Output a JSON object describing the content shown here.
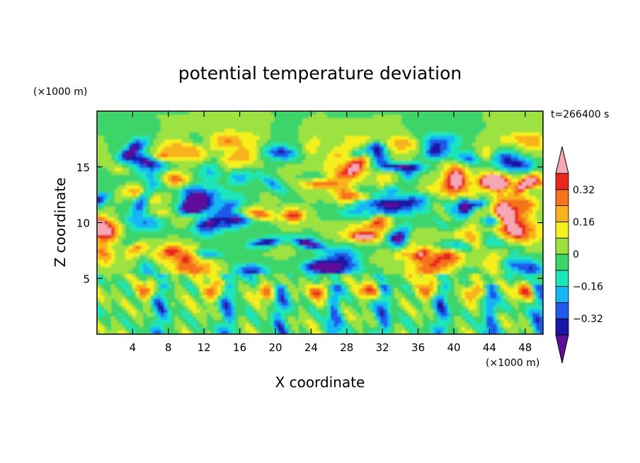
{
  "chart_data": {
    "type": "heatmap",
    "title": "potential temperature deviation",
    "xlabel": "X coordinate",
    "ylabel": "Z coordinate",
    "x_unit": "(×1000 m)",
    "y_unit": "(×1000 m)",
    "time_label": "t=266400 s",
    "xlim": [
      0,
      50
    ],
    "ylim": [
      0,
      20
    ],
    "x_ticks": [
      "4",
      "8",
      "12",
      "16",
      "20",
      "24",
      "28",
      "32",
      "36",
      "40",
      "44",
      "48"
    ],
    "y_ticks": [
      "5",
      "10",
      "15"
    ],
    "colorbar": {
      "labels": [
        "0.32",
        "0.16",
        "0",
        "−0.16",
        "−0.32"
      ],
      "levels": [
        -0.4,
        -0.32,
        -0.24,
        -0.16,
        -0.08,
        0,
        0.08,
        0.16,
        0.24,
        0.32,
        0.4
      ],
      "colors": [
        "#5e0f98",
        "#1a17a8",
        "#1f5ae8",
        "#16b6f5",
        "#1fe6b9",
        "#3cd56a",
        "#9ce23f",
        "#f5f01f",
        "#f8b21f",
        "#f5731b",
        "#e8281c",
        "#f5a8b4"
      ]
    },
    "field_description": "Convective boundary layer below ~5 km with plumes; wave-like alternating warm/cold eddies between 5 and 18 km; near-zero field above 18 km"
  }
}
